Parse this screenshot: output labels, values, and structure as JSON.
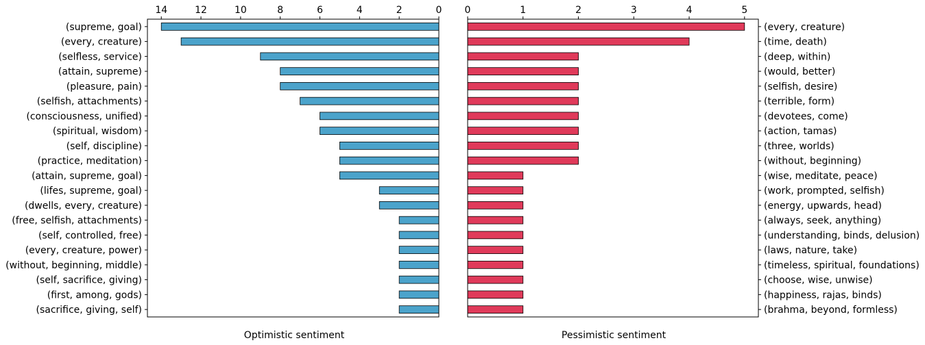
{
  "chart_data": [
    {
      "type": "bar",
      "orientation": "horizontal",
      "inverted_x": true,
      "xlabel": "Optimistic sentiment",
      "xlim": [
        0,
        14.7
      ],
      "xticks": [
        14,
        12,
        10,
        8,
        6,
        4,
        2,
        0
      ],
      "tick_position": "top",
      "category_label_side": "left",
      "bar_color": "#4BA3CB",
      "categories": [
        "(supreme, goal)",
        "(every, creature)",
        "(selfless, service)",
        "(attain, supreme)",
        "(pleasure, pain)",
        "(selfish, attachments)",
        "(consciousness, unified)",
        "(spiritual, wisdom)",
        "(self, discipline)",
        "(practice, meditation)",
        "(attain, supreme, goal)",
        "(lifes, supreme, goal)",
        "(dwells, every, creature)",
        "(free, selfish, attachments)",
        "(self, controlled, free)",
        "(every, creature, power)",
        "(without, beginning, middle)",
        "(self, sacrifice, giving)",
        "(first, among, gods)",
        "(sacrifice, giving, self)"
      ],
      "values": [
        14,
        13,
        9,
        8,
        8,
        7,
        6,
        6,
        5,
        5,
        5,
        3,
        3,
        2,
        2,
        2,
        2,
        2,
        2,
        2
      ]
    },
    {
      "type": "bar",
      "orientation": "horizontal",
      "inverted_x": false,
      "xlabel": "Pessimistic sentiment",
      "xlim": [
        0,
        5.25
      ],
      "xticks": [
        0,
        1,
        2,
        3,
        4,
        5
      ],
      "tick_position": "top",
      "category_label_side": "right",
      "bar_color": "#E03A5A",
      "categories": [
        "(every, creature)",
        "(time, death)",
        "(deep, within)",
        "(would, better)",
        "(selfish, desire)",
        "(terrible, form)",
        "(devotees, come)",
        "(action, tamas)",
        "(three, worlds)",
        "(without, beginning)",
        "(wise, meditate, peace)",
        "(work, prompted, selfish)",
        "(energy, upwards, head)",
        "(always, seek, anything)",
        "(understanding, binds, delusion)",
        "(laws, nature, take)",
        "(timeless, spiritual, foundations)",
        "(choose, wise, unwise)",
        "(happiness, rajas, binds)",
        "(brahma, beyond, formless)"
      ],
      "values": [
        5,
        4,
        2,
        2,
        2,
        2,
        2,
        2,
        2,
        2,
        1,
        1,
        1,
        1,
        1,
        1,
        1,
        1,
        1,
        1
      ]
    }
  ]
}
